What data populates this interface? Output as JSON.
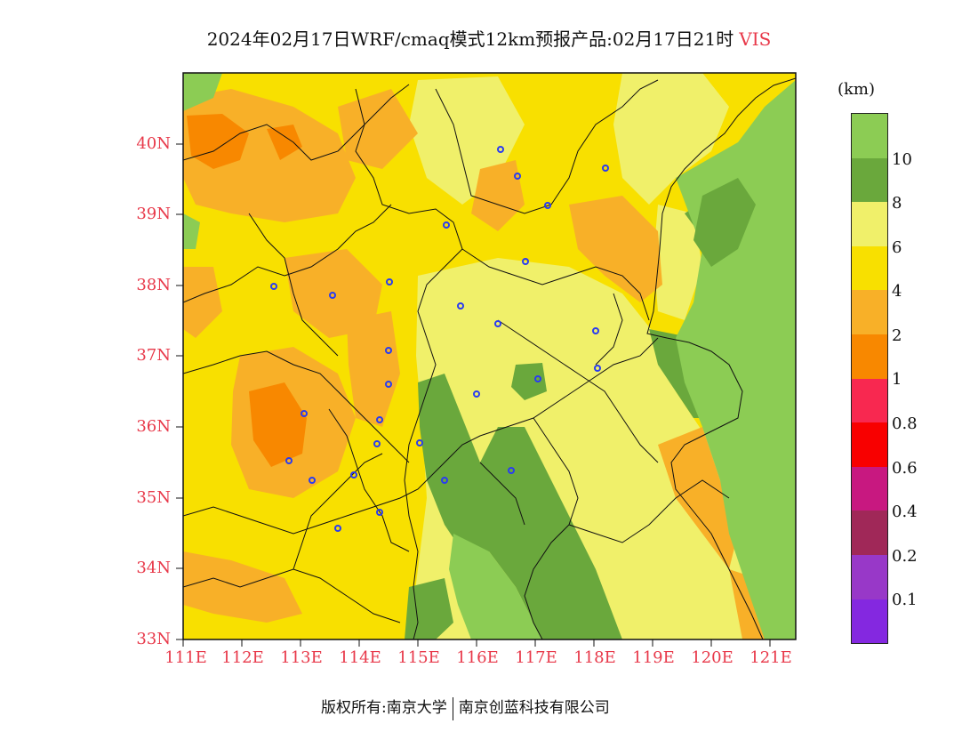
{
  "title": {
    "text": "2024年02月17日WRF/cmaq模式12km预报产品:02月17日21时",
    "variable": "VIS"
  },
  "map": {
    "lat_labels": [
      "40N",
      "39N",
      "38N",
      "37N",
      "36N",
      "35N",
      "34N",
      "33N"
    ],
    "lon_labels": [
      "111E",
      "112E",
      "113E",
      "114E",
      "115E",
      "116E",
      "117E",
      "118E",
      "119E",
      "120E",
      "121E"
    ]
  },
  "legend": {
    "unit": "(km)",
    "labels": [
      "10",
      "8",
      "6",
      "4",
      "2",
      "1",
      "0.8",
      "0.6",
      "0.4",
      "0.2",
      "0.1"
    ],
    "colors": [
      "#8ccc54",
      "#6aa83c",
      "#f0f06a",
      "#f8e000",
      "#f8b028",
      "#f88800",
      "#f82850",
      "#f80000",
      "#c81880",
      "#a02858",
      "#9838c8",
      "#8428e0"
    ]
  },
  "footer": {
    "copyright": "版权所有:南京大学",
    "company": "南京创蓝科技有限公司"
  }
}
